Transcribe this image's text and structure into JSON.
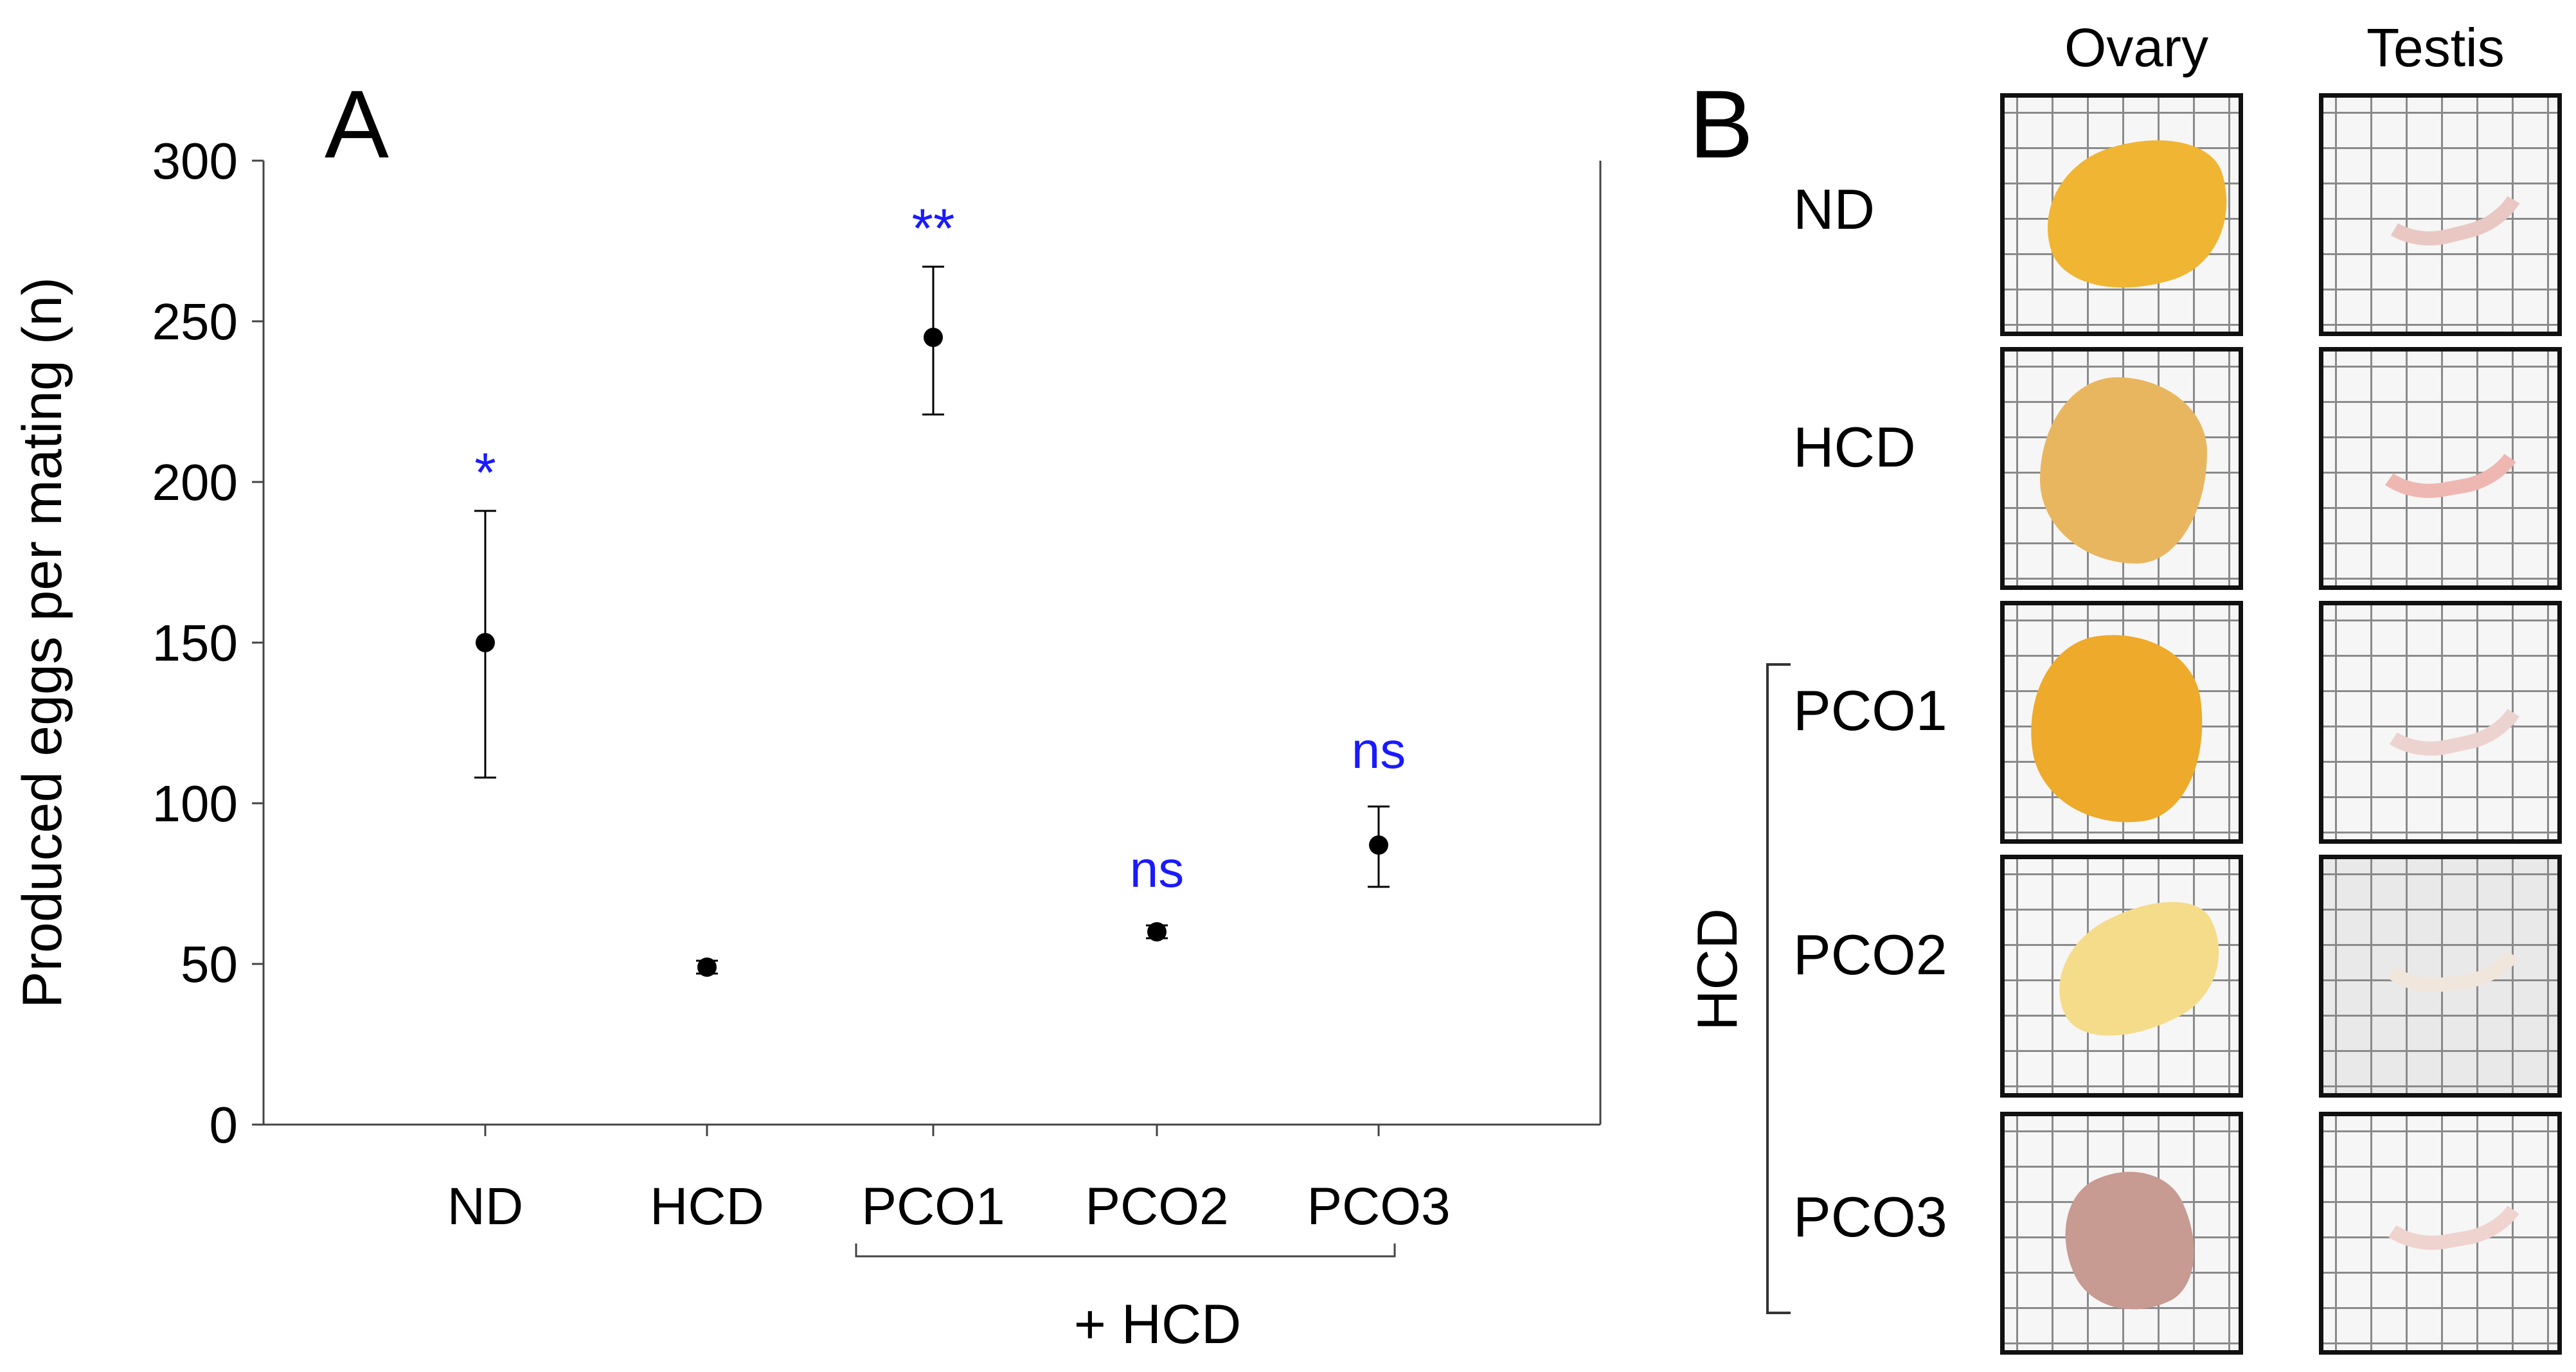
{
  "panel_a": {
    "letter": "A"
  },
  "panel_b": {
    "letter": "B",
    "columns": [
      "Ovary",
      "Testis"
    ],
    "rows": [
      "ND",
      "HCD",
      "PCO1",
      "PCO2",
      "PCO3"
    ],
    "group_label": "HCD"
  },
  "chart_data": {
    "type": "scatter",
    "title": "",
    "xlabel": "+ HCD",
    "ylabel": "Produced eggs per mating (n)",
    "ylim": [
      0,
      300
    ],
    "yticks": [
      0,
      50,
      100,
      150,
      200,
      250,
      300
    ],
    "categories": [
      "ND",
      "HCD",
      "PCO1",
      "PCO2",
      "PCO3"
    ],
    "values": [
      150,
      49,
      245,
      60,
      87
    ],
    "error_low": [
      108,
      47,
      221,
      58,
      74
    ],
    "error_high": [
      191,
      51,
      267,
      62,
      99
    ],
    "significance": [
      "*",
      "",
      "**",
      "ns",
      "ns"
    ],
    "significance_color": "#1a1aff",
    "group_bracket": {
      "from": "PCO1",
      "to": "PCO3",
      "label": "+ HCD"
    },
    "grid": false
  },
  "colors": {
    "marker": "#000000",
    "sig": "#1a1aff",
    "ovary_nd": "#f0b532",
    "ovary_hcd": "#e9b660",
    "ovary_pco1": "#eeaa2a",
    "ovary_pco2": "#f4dc8a",
    "ovary_pco3": "#c79a92",
    "testis": "#eacbc6"
  }
}
